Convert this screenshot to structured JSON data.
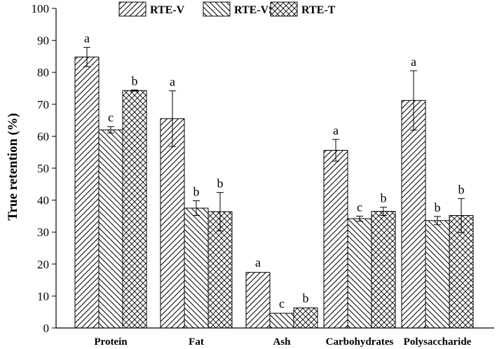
{
  "chart_data": {
    "type": "bar",
    "ylabel": "True retention (%)",
    "xlabel": "",
    "ylim": [
      0,
      100
    ],
    "y_ticks": [
      0,
      10,
      20,
      30,
      40,
      50,
      60,
      70,
      80,
      90,
      100
    ],
    "categories": [
      "Protein",
      "Fat",
      "Ash",
      "Carbohydrates",
      "Polysaccharide"
    ],
    "legend_position": "top-center",
    "series": [
      {
        "name": "RTE-V",
        "pattern": "diagonal-forward",
        "values": [
          84.8,
          65.5,
          17.4,
          55.6,
          71.2
        ],
        "errors": [
          3.0,
          8.7,
          0,
          3.4,
          9.3
        ],
        "significance": [
          "a",
          "a",
          "a",
          "a",
          "a"
        ]
      },
      {
        "name": "RTE-VS",
        "pattern": "diagonal-backward",
        "values": [
          62.0,
          37.5,
          4.6,
          34.2,
          33.6
        ],
        "errors": [
          1.0,
          2.3,
          0,
          0.8,
          1.3
        ],
        "significance": [
          "c",
          "b",
          "c",
          "c",
          "b"
        ]
      },
      {
        "name": "RTE-T",
        "pattern": "crosshatch",
        "values": [
          74.3,
          36.4,
          6.3,
          36.5,
          35.2
        ],
        "errors": [
          0.2,
          6.0,
          0,
          1.3,
          5.3
        ],
        "significance": [
          "b",
          "b",
          "b",
          "b",
          "b"
        ]
      }
    ]
  }
}
